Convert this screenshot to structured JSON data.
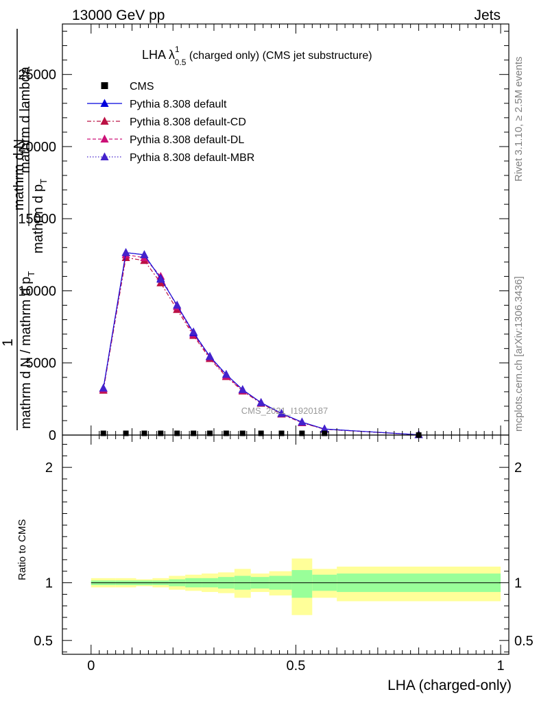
{
  "header": {
    "left_label": "13000 GeV pp",
    "right_label": "Jets"
  },
  "side_labels": {
    "rivet": "Rivet 3.1.10, ≥ 2.5M events",
    "mcplots": "mcplots.cern.ch [arXiv:1306.3436]"
  },
  "watermark": "CMS_2021_I1920187",
  "chart_data": [
    {
      "type": "line",
      "title_main": "LHA λ",
      "title_sup": "1",
      "title_sub": "0.5",
      "title_rest": " (charged only) (CMS jet substructure)",
      "ylabel_parts": [
        "1",
        "mathrm d N / mathrm d p",
        "T",
        "mathrm d p",
        "T",
        "mathrm d N",
        "mathrm d lambda"
      ],
      "xlim": [
        -0.07,
        1.02
      ],
      "ylim": [
        0,
        28500
      ],
      "yticks": [
        0,
        5000,
        10000,
        15000,
        20000,
        25000
      ],
      "ytick_labels": [
        "0",
        "5000",
        "10000",
        "15000",
        "20000",
        "25000"
      ],
      "legend_position": "top-left",
      "x": [
        0.03,
        0.085,
        0.13,
        0.17,
        0.21,
        0.25,
        0.29,
        0.33,
        0.37,
        0.415,
        0.465,
        0.515,
        0.57,
        0.8
      ],
      "series": [
        {
          "name": "CMS",
          "color": "#000000",
          "marker": "square",
          "line": "none",
          "values": [
            120,
            120,
            120,
            120,
            120,
            120,
            120,
            120,
            120,
            120,
            120,
            120,
            120,
            0
          ]
        },
        {
          "name": "Pythia 8.308 default",
          "color": "#0000dd",
          "marker": "triangle",
          "line": "solid",
          "values": [
            3250,
            12650,
            12500,
            10850,
            9000,
            7100,
            5450,
            4200,
            3150,
            2250,
            1500,
            900,
            420,
            20
          ]
        },
        {
          "name": "Pythia 8.308 default-CD",
          "color": "#bb1144",
          "marker": "triangle",
          "line": "dashdot",
          "values": [
            3100,
            12300,
            12100,
            10550,
            8700,
            6900,
            5300,
            4050,
            3050,
            2200,
            1450,
            850,
            400,
            20
          ]
        },
        {
          "name": "Pythia 8.308 default-DL",
          "color": "#cc1177",
          "marker": "triangle",
          "line": "dashed",
          "values": [
            3200,
            12500,
            12300,
            11000,
            8900,
            7000,
            5400,
            4100,
            3100,
            2250,
            1480,
            870,
            410,
            20
          ]
        },
        {
          "name": "Pythia 8.308 default-MBR",
          "color": "#4422cc",
          "marker": "triangle",
          "line": "dotted",
          "values": [
            3250,
            12650,
            12500,
            10800,
            9000,
            7150,
            5450,
            4200,
            3150,
            2250,
            1500,
            900,
            420,
            20
          ]
        }
      ]
    },
    {
      "type": "area",
      "ylabel": "Ratio to CMS",
      "xlabel": "LHA (charged-only)",
      "xlim": [
        -0.07,
        1.02
      ],
      "ylim": [
        0.38,
        2.28
      ],
      "xticks": [
        0,
        0.5,
        1
      ],
      "xtick_labels": [
        "0",
        "0.5",
        "1"
      ],
      "yticks": [
        0.5,
        1,
        2
      ],
      "ytick_labels": [
        "0.5",
        "1",
        "2"
      ],
      "bin_edges": [
        0.0,
        0.06,
        0.11,
        0.15,
        0.19,
        0.23,
        0.27,
        0.31,
        0.35,
        0.39,
        0.435,
        0.49,
        0.54,
        0.6,
        1.0
      ],
      "outer_band": [
        [
          0.96,
          1.04
        ],
        [
          0.96,
          1.04
        ],
        [
          0.97,
          1.03
        ],
        [
          0.96,
          1.04
        ],
        [
          0.94,
          1.06
        ],
        [
          0.93,
          1.07
        ],
        [
          0.92,
          1.08
        ],
        [
          0.91,
          1.09
        ],
        [
          0.87,
          1.12
        ],
        [
          0.92,
          1.08
        ],
        [
          0.89,
          1.1
        ],
        [
          0.72,
          1.21
        ],
        [
          0.87,
          1.12
        ],
        [
          0.84,
          1.14
        ]
      ],
      "inner_band": [
        [
          0.98,
          1.02
        ],
        [
          0.98,
          1.02
        ],
        [
          0.98,
          1.02
        ],
        [
          0.98,
          1.02
        ],
        [
          0.97,
          1.03
        ],
        [
          0.96,
          1.04
        ],
        [
          0.96,
          1.04
        ],
        [
          0.95,
          1.05
        ],
        [
          0.94,
          1.06
        ],
        [
          0.95,
          1.05
        ],
        [
          0.94,
          1.06
        ],
        [
          0.87,
          1.11
        ],
        [
          0.93,
          1.07
        ],
        [
          0.92,
          1.08
        ]
      ],
      "outer_color": "#ffff99",
      "inner_color": "#99ff99",
      "reference_line": 1
    }
  ]
}
